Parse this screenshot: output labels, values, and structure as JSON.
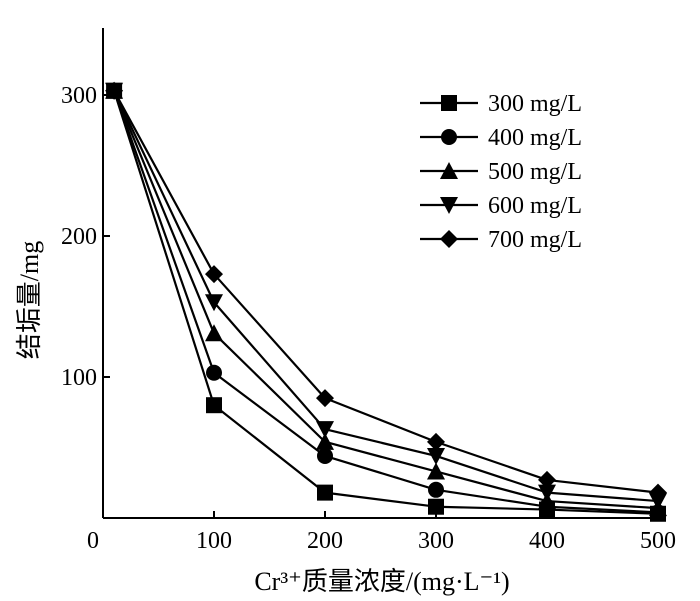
{
  "chart_data": {
    "type": "line",
    "x": [
      10,
      100,
      200,
      300,
      400,
      500
    ],
    "xlabel": "Cr³⁺质量浓度/(mg·L⁻¹)",
    "ylabel": "结垢量/mg",
    "xlim": [
      0,
      500
    ],
    "ylim": [
      0,
      350
    ],
    "xticks": [
      "0",
      "100",
      "200",
      "300",
      "400",
      "500"
    ],
    "yticks": [
      "100",
      "200",
      "300"
    ],
    "legend_position": "top-right",
    "grid": false,
    "series": [
      {
        "name": "300 mg/L",
        "marker": "square",
        "values": [
          303,
          80,
          18,
          8,
          6,
          3
        ]
      },
      {
        "name": "400 mg/L",
        "marker": "circle",
        "values": [
          303,
          103,
          44,
          20,
          8,
          4
        ]
      },
      {
        "name": "500 mg/L",
        "marker": "triangle-up",
        "values": [
          303,
          131,
          54,
          33,
          12,
          7
        ]
      },
      {
        "name": "600 mg/L",
        "marker": "triangle-down",
        "values": [
          303,
          153,
          63,
          44,
          18,
          12
        ]
      },
      {
        "name": "700 mg/L",
        "marker": "diamond",
        "values": [
          303,
          173,
          85,
          54,
          27,
          18
        ]
      }
    ],
    "colors": {
      "line": "#000000",
      "marker": "#000000",
      "background": "#ffffff"
    }
  }
}
